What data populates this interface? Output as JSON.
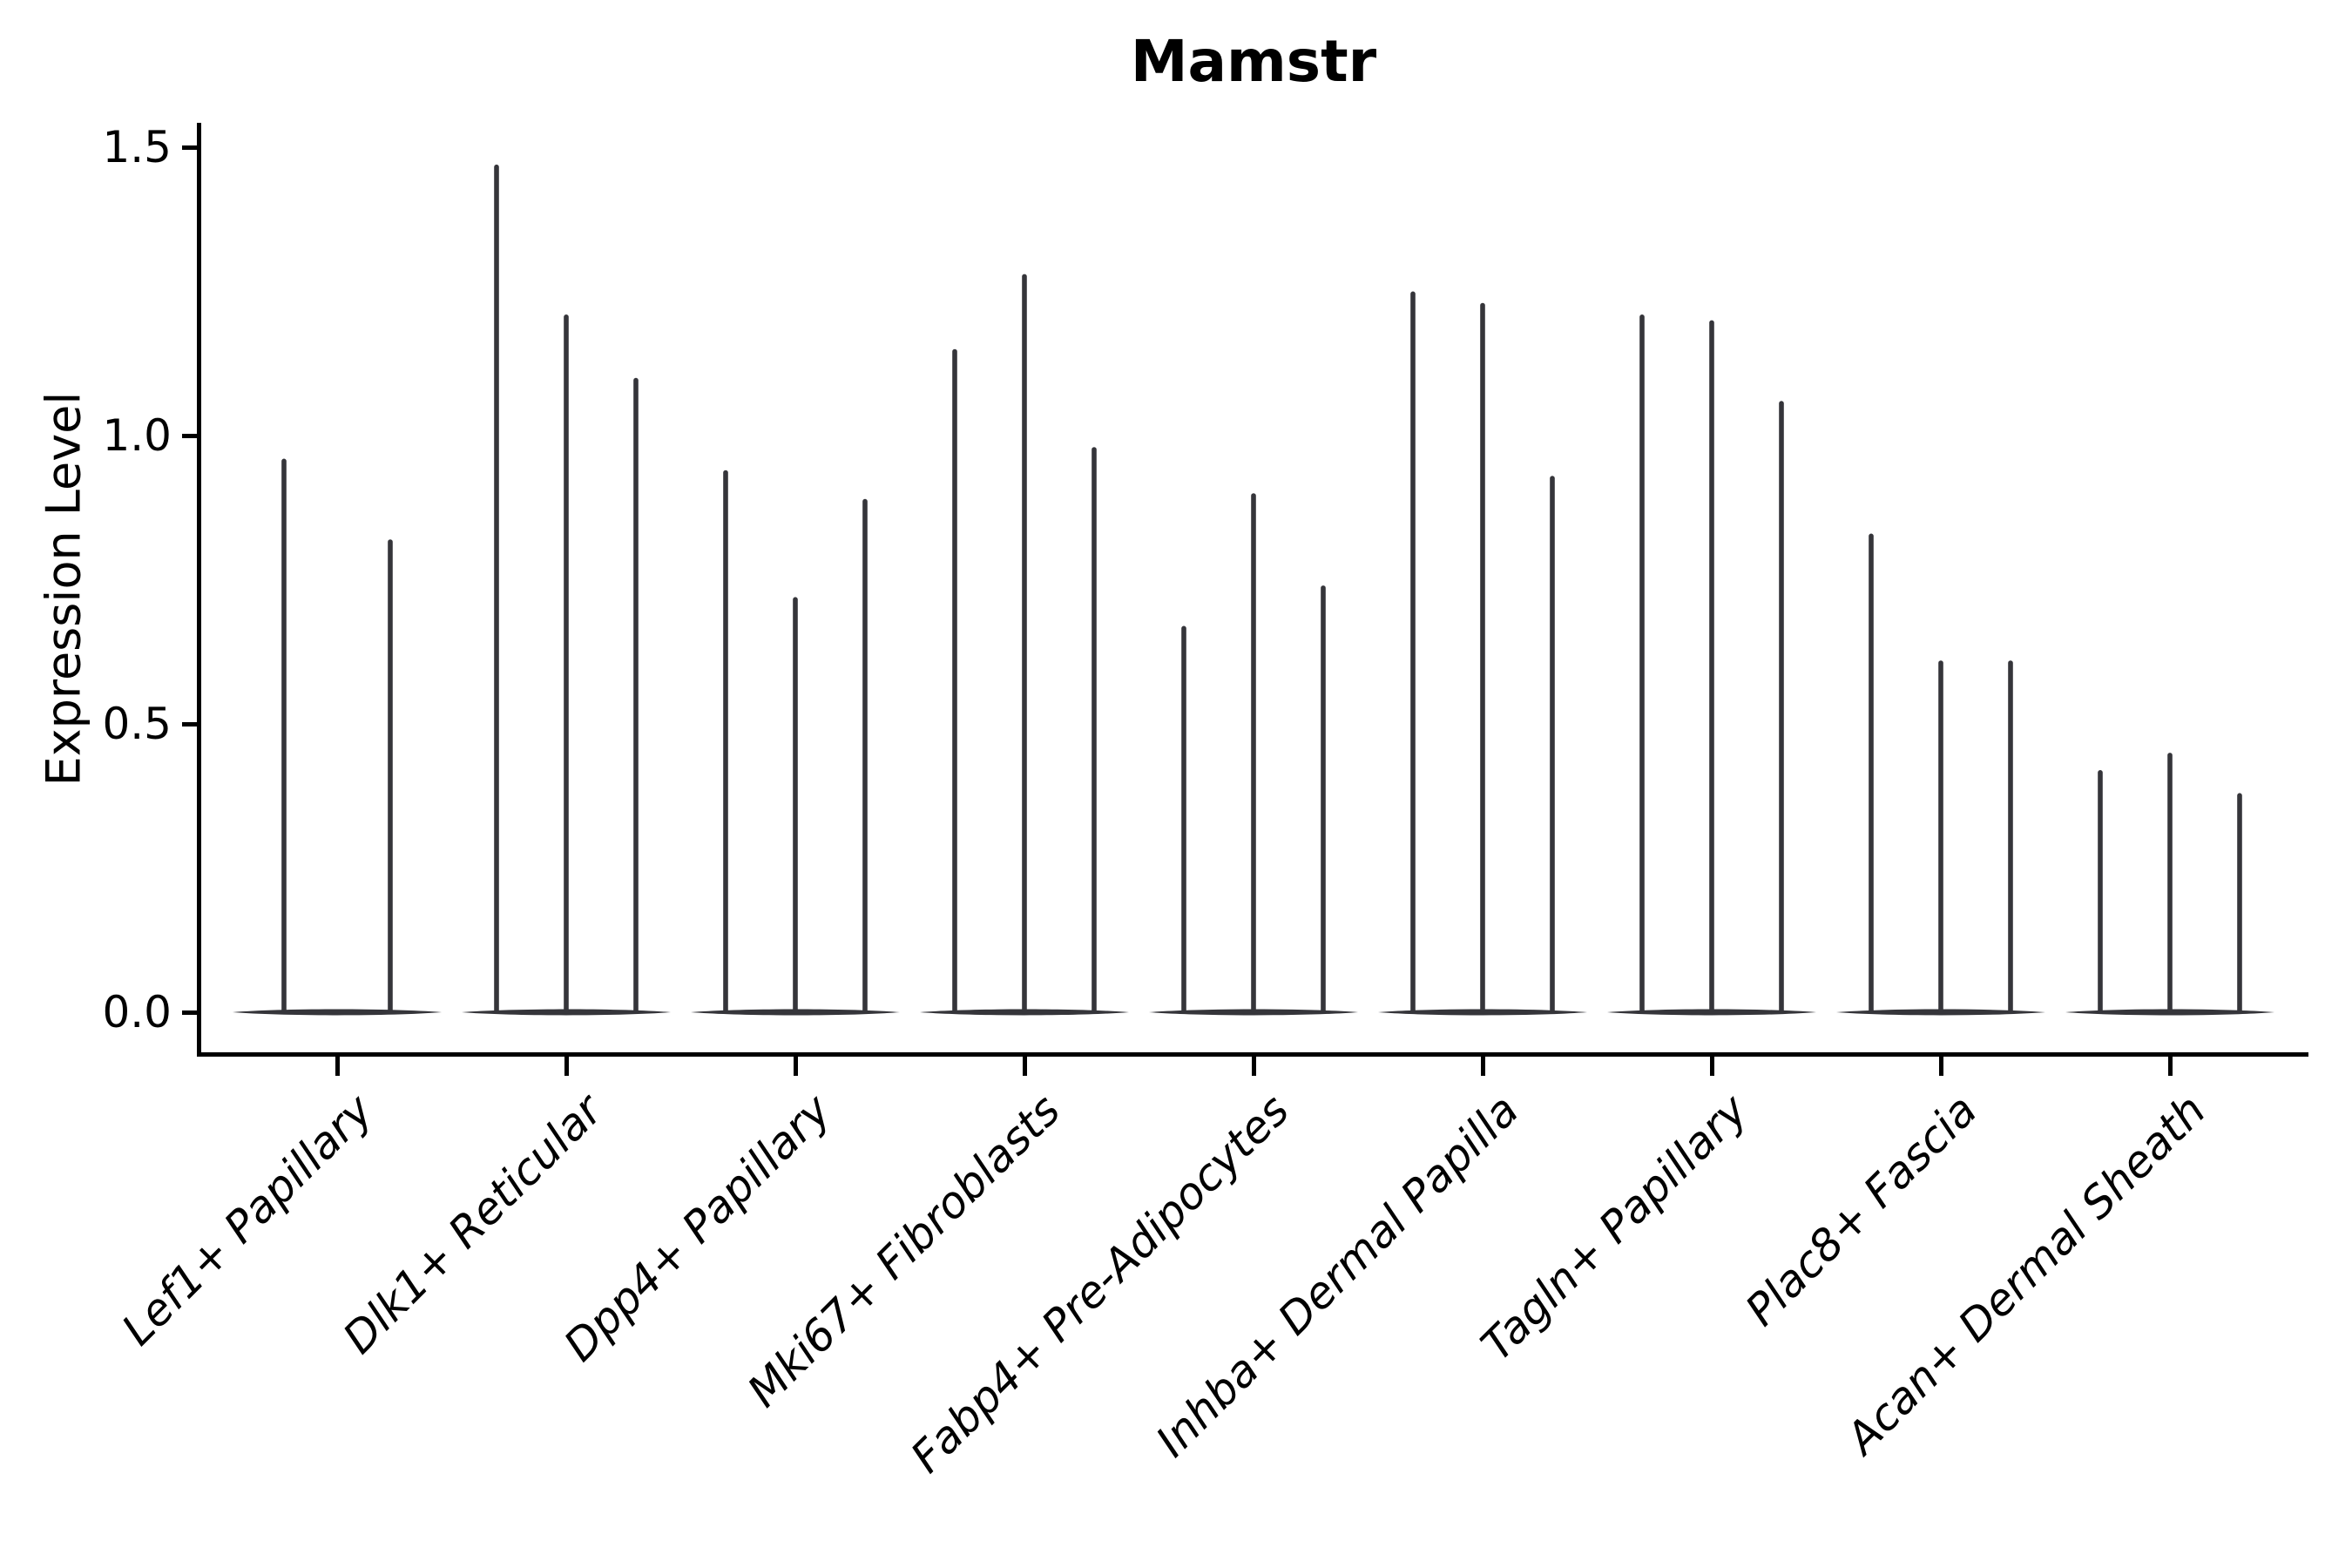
{
  "title": "Mamstr",
  "ylabel": "Expression Level",
  "ytick_labels": [
    "1.5",
    "1.0",
    "0.5",
    "0.0"
  ],
  "colors": {
    "violin": "#35353a",
    "axis": "#000000",
    "background": "#ffffff"
  },
  "chart_data": {
    "type": "violin",
    "title": "Mamstr",
    "xlabel": "",
    "ylabel": "Expression Level",
    "ylim": [
      0,
      1.5
    ],
    "yticks": [
      0.0,
      0.5,
      1.0,
      1.5
    ],
    "grid": false,
    "legend": "none",
    "style": "each violin is a thin spike: wide flat density mass at expression 0 with a hair-thin tail rising to its maximum value",
    "groups": [
      {
        "label": "Lef1+ Papillary",
        "violin_maxima": [
          0.96,
          0.82
        ]
      },
      {
        "label": "Dlk1+ Reticular",
        "violin_maxima": [
          1.47,
          1.21,
          1.1
        ]
      },
      {
        "label": "Dpp4+ Papillary",
        "violin_maxima": [
          0.94,
          0.72,
          0.89
        ]
      },
      {
        "label": "Mki67+ Fibroblasts",
        "violin_maxima": [
          1.15,
          1.28,
          0.98
        ]
      },
      {
        "label": "Fabp4+ Pre-Adipocytes",
        "violin_maxima": [
          0.67,
          0.9,
          0.74
        ]
      },
      {
        "label": "Inhba+ Dermal Papilla",
        "violin_maxima": [
          1.25,
          1.23,
          0.93
        ]
      },
      {
        "label": "Tagln+ Papillary",
        "violin_maxima": [
          1.21,
          1.2,
          1.06
        ]
      },
      {
        "label": "Plac8+ Fascia",
        "violin_maxima": [
          0.83,
          0.61,
          0.61
        ]
      },
      {
        "label": "Acan+ Dermal Sheath",
        "violin_maxima": [
          0.42,
          0.45,
          0.38
        ]
      }
    ]
  }
}
